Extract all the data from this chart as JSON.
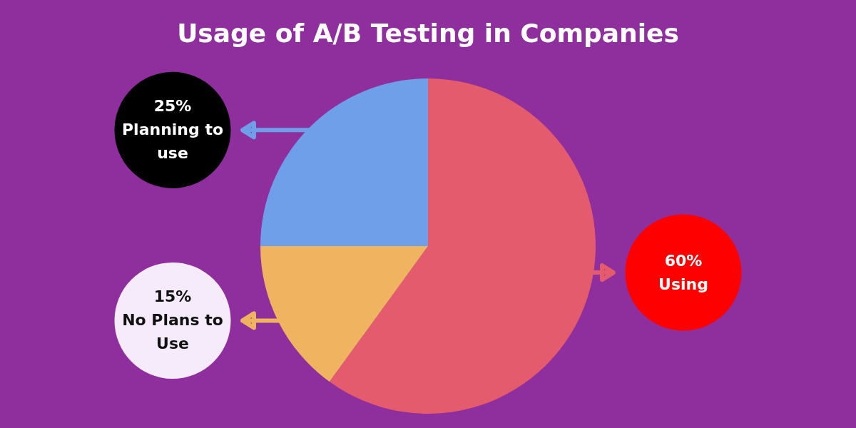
{
  "chart_data": {
    "type": "pie",
    "title": "Usage of A/B Testing in Companies",
    "categories": [
      "Using",
      "No Plans to Use",
      "Planning to use"
    ],
    "values": [
      60,
      15,
      25
    ],
    "value_labels": [
      "60%",
      "15%",
      "25%"
    ],
    "colors": [
      "#e35b6c",
      "#f0b460",
      "#6f9fe8"
    ]
  }
}
